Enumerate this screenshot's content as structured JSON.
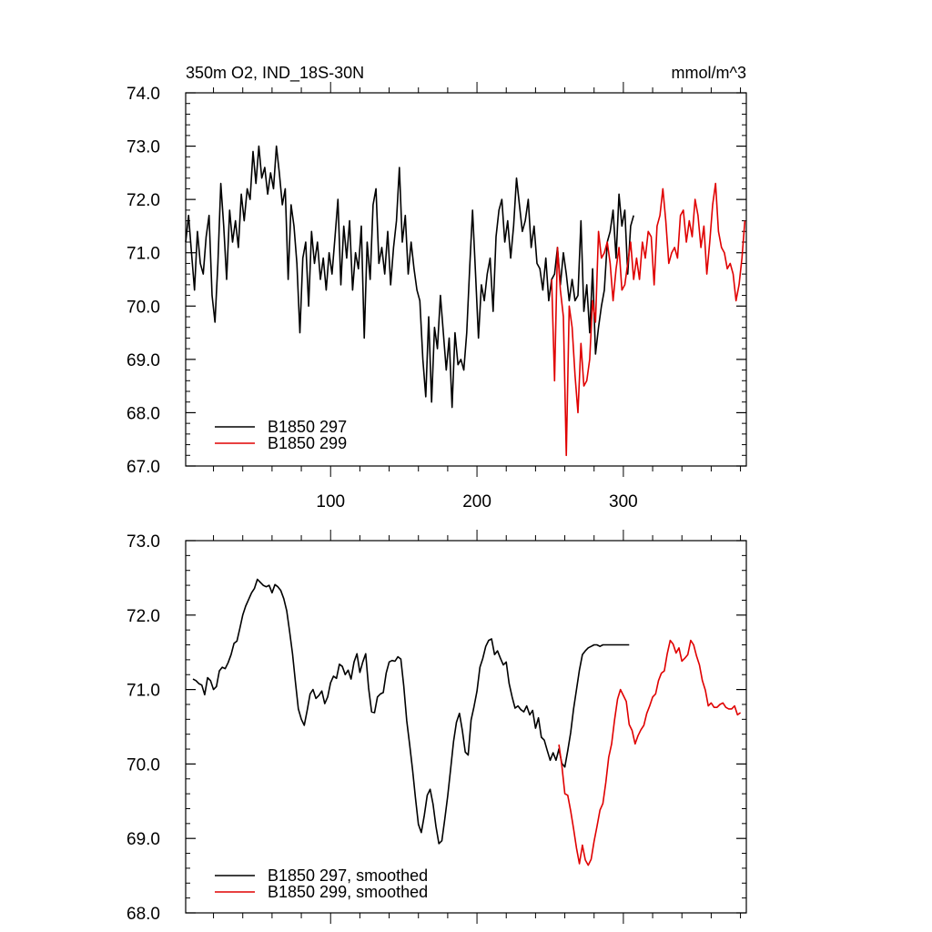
{
  "header": {
    "title": "350m O2, IND_18S-30N",
    "units": "mmol/m^3"
  },
  "colors": {
    "run_297": "#000000",
    "run_299": "#e00000"
  },
  "chart_data": [
    {
      "type": "line",
      "xlim": [
        1,
        384
      ],
      "ylim": [
        67,
        74
      ],
      "x_ticks": [
        100,
        200,
        300
      ],
      "x_tick_labels": [
        "100",
        "200",
        "300"
      ],
      "y_ticks": [
        67,
        68,
        69,
        70,
        71,
        72,
        73,
        74
      ],
      "y_tick_labels": [
        "67.0",
        "68.0",
        "69.0",
        "70.0",
        "71.0",
        "72.0",
        "73.0",
        "74.0"
      ],
      "legend_position": "bottom-left",
      "series": [
        {
          "name": "B1850 297",
          "color": "#000000",
          "x": [
            1,
            3,
            5,
            7,
            9,
            11,
            13,
            15,
            17,
            19,
            21,
            23,
            25,
            27,
            29,
            31,
            33,
            35,
            37,
            39,
            41,
            43,
            45,
            47,
            49,
            51,
            53,
            55,
            57,
            59,
            61,
            63,
            65,
            67,
            69,
            71,
            73,
            75,
            77,
            79,
            81,
            83,
            85,
            87,
            89,
            91,
            93,
            95,
            97,
            99,
            101,
            103,
            105,
            107,
            109,
            111,
            113,
            115,
            117,
            119,
            121,
            123,
            125,
            127,
            129,
            131,
            133,
            135,
            137,
            139,
            141,
            143,
            145,
            147,
            149,
            151,
            153,
            155,
            157,
            159,
            161,
            163,
            165,
            167,
            169,
            171,
            173,
            175,
            177,
            179,
            181,
            183,
            185,
            187,
            189,
            191,
            193,
            195,
            197,
            199,
            201,
            203,
            205,
            207,
            209,
            211,
            213,
            215,
            217,
            219,
            221,
            223,
            225,
            227,
            229,
            231,
            233,
            235,
            237,
            239,
            241,
            243,
            245,
            247,
            249,
            251,
            253,
            255,
            257,
            259,
            261,
            263,
            265,
            267,
            269,
            271,
            273,
            275,
            277,
            279,
            281,
            283,
            285,
            287,
            289,
            291,
            293,
            295,
            297,
            299,
            301,
            303,
            305,
            307
          ],
          "y": [
            71.2,
            71.7,
            71.0,
            70.3,
            71.4,
            70.8,
            70.6,
            71.3,
            71.7,
            70.2,
            69.7,
            70.8,
            72.3,
            71.5,
            70.5,
            71.8,
            71.2,
            71.6,
            71.1,
            72.1,
            71.6,
            72.2,
            72.0,
            72.9,
            72.3,
            73.0,
            72.4,
            72.6,
            72.1,
            72.5,
            72.2,
            73.0,
            72.5,
            71.9,
            72.2,
            70.5,
            71.9,
            71.5,
            70.8,
            69.5,
            70.9,
            71.2,
            70.0,
            71.4,
            70.8,
            71.2,
            70.5,
            70.9,
            70.3,
            71.0,
            70.6,
            71.3,
            72.0,
            70.4,
            71.5,
            70.9,
            71.6,
            70.3,
            71.0,
            70.7,
            71.5,
            69.4,
            71.2,
            70.5,
            71.9,
            72.2,
            70.8,
            71.1,
            70.6,
            71.4,
            70.4,
            71.1,
            71.6,
            72.6,
            71.2,
            71.7,
            70.6,
            71.2,
            70.7,
            70.3,
            70.1,
            69.0,
            68.3,
            69.8,
            68.2,
            69.6,
            69.2,
            70.2,
            69.5,
            68.8,
            69.4,
            68.1,
            69.5,
            68.9,
            69.0,
            68.8,
            69.5,
            70.7,
            71.8,
            70.6,
            69.4,
            70.4,
            70.1,
            70.6,
            70.9,
            69.9,
            71.3,
            71.8,
            72.0,
            71.2,
            71.6,
            70.9,
            71.5,
            72.4,
            71.9,
            71.4,
            71.6,
            72.0,
            71.1,
            71.5,
            70.8,
            70.7,
            70.3,
            70.9,
            70.1,
            70.5,
            70.6,
            71.1,
            70.4,
            71.0,
            70.6,
            70.1,
            70.5,
            70.1,
            70.2,
            71.6,
            69.9,
            70.4,
            69.5,
            70.7,
            69.1,
            69.6,
            70.0,
            70.3,
            71.2,
            71.4,
            71.8,
            70.9,
            72.1,
            71.5,
            71.8,
            70.6,
            71.5,
            71.7
          ],
          "style": "line"
        },
        {
          "name": "B1850 299",
          "color": "#e00000",
          "x": [
            251,
            253,
            255,
            257,
            259,
            261,
            263,
            265,
            267,
            269,
            271,
            273,
            275,
            277,
            279,
            281,
            283,
            285,
            287,
            289,
            291,
            293,
            295,
            297,
            299,
            301,
            303,
            305,
            307,
            309,
            311,
            313,
            315,
            317,
            319,
            321,
            323,
            325,
            327,
            329,
            331,
            333,
            335,
            337,
            339,
            341,
            343,
            345,
            347,
            349,
            351,
            353,
            355,
            357,
            359,
            361,
            363,
            365,
            367,
            369,
            371,
            373,
            375,
            377,
            379,
            381,
            383
          ],
          "y": [
            70.5,
            68.6,
            71.1,
            70.3,
            69.8,
            67.2,
            70.0,
            69.6,
            68.7,
            68.0,
            69.3,
            68.5,
            68.6,
            69.0,
            70.1,
            69.7,
            71.4,
            70.9,
            71.0,
            71.2,
            70.8,
            70.1,
            70.7,
            71.1,
            70.3,
            70.4,
            70.8,
            71.2,
            70.5,
            70.9,
            70.5,
            71.2,
            70.9,
            71.4,
            71.3,
            70.4,
            71.5,
            71.7,
            72.2,
            71.6,
            70.8,
            71.0,
            71.1,
            70.9,
            71.7,
            71.8,
            71.2,
            71.6,
            71.3,
            72.0,
            71.7,
            71.1,
            71.5,
            70.6,
            71.2,
            71.9,
            72.3,
            71.4,
            71.1,
            71.0,
            70.7,
            70.8,
            70.6,
            70.1,
            70.4,
            70.9,
            71.6
          ],
          "style": "line"
        }
      ]
    },
    {
      "type": "line",
      "xlim": [
        1,
        384
      ],
      "ylim": [
        68,
        73
      ],
      "y_ticks": [
        68,
        69,
        70,
        71,
        72,
        73
      ],
      "y_tick_labels": [
        "68.0",
        "69.0",
        "70.0",
        "71.0",
        "72.0",
        "73.0"
      ],
      "legend_position": "bottom-left",
      "series": [
        {
          "name": "B1850 297, smoothed",
          "color": "#000000",
          "x": [
            6,
            8,
            10,
            12,
            14,
            16,
            18,
            20,
            22,
            24,
            26,
            28,
            30,
            32,
            34,
            36,
            38,
            40,
            42,
            44,
            46,
            48,
            50,
            52,
            54,
            56,
            58,
            60,
            62,
            64,
            66,
            68,
            70,
            72,
            74,
            76,
            78,
            80,
            82,
            84,
            86,
            88,
            90,
            92,
            94,
            96,
            98,
            100,
            102,
            104,
            106,
            108,
            110,
            112,
            114,
            116,
            118,
            120,
            122,
            124,
            126,
            128,
            130,
            132,
            134,
            136,
            138,
            140,
            142,
            144,
            146,
            148,
            150,
            152,
            154,
            156,
            158,
            160,
            162,
            164,
            166,
            168,
            170,
            172,
            174,
            176,
            178,
            180,
            182,
            184,
            186,
            188,
            190,
            192,
            194,
            196,
            198,
            200,
            202,
            204,
            206,
            208,
            210,
            212,
            214,
            216,
            218,
            220,
            222,
            224,
            226,
            228,
            230,
            232,
            234,
            236,
            238,
            240,
            242,
            244,
            246,
            248,
            250,
            252,
            254,
            256,
            258,
            260,
            262,
            264,
            266,
            268,
            270,
            272,
            274,
            276,
            278,
            280,
            282,
            284,
            286,
            288,
            290,
            292,
            294,
            296,
            298,
            300,
            302,
            304
          ],
          "y": [
            71.14,
            71.12,
            71.08,
            71.06,
            70.93,
            71.16,
            71.12,
            71.0,
            71.04,
            71.25,
            71.3,
            71.28,
            71.36,
            71.47,
            71.62,
            71.65,
            71.82,
            72.0,
            72.12,
            72.21,
            72.3,
            72.36,
            72.48,
            72.44,
            72.4,
            72.38,
            72.4,
            72.3,
            72.41,
            72.38,
            72.33,
            72.22,
            72.06,
            71.78,
            71.48,
            71.1,
            70.74,
            70.6,
            70.52,
            70.72,
            70.94,
            71.0,
            70.88,
            70.92,
            70.98,
            70.81,
            70.9,
            71.09,
            71.18,
            71.15,
            71.34,
            71.31,
            71.2,
            71.26,
            71.14,
            71.37,
            71.48,
            71.23,
            71.37,
            71.48,
            71.02,
            70.7,
            70.69,
            70.9,
            70.94,
            70.96,
            71.22,
            71.37,
            71.39,
            71.38,
            71.44,
            71.41,
            71.05,
            70.58,
            70.26,
            69.92,
            69.54,
            69.19,
            69.08,
            69.31,
            69.58,
            69.66,
            69.46,
            69.16,
            68.93,
            68.97,
            69.26,
            69.57,
            69.93,
            70.3,
            70.56,
            70.68,
            70.45,
            70.16,
            70.12,
            70.59,
            70.77,
            70.98,
            71.3,
            71.42,
            71.58,
            71.66,
            71.68,
            71.47,
            71.52,
            71.42,
            71.33,
            71.37,
            71.08,
            70.9,
            70.75,
            70.78,
            70.73,
            70.7,
            70.78,
            70.66,
            70.72,
            70.48,
            70.62,
            70.36,
            70.32,
            70.18,
            70.05,
            70.15,
            70.05,
            70.2,
            70.01,
            69.96,
            70.18,
            70.42,
            70.74,
            71.0,
            71.26,
            71.47,
            71.52,
            71.56,
            71.58,
            71.6,
            71.6,
            71.58,
            71.6,
            71.6,
            71.6,
            71.6,
            71.6,
            71.6,
            71.6,
            71.6,
            71.6,
            71.6
          ],
          "style": "line"
        },
        {
          "name": "B1850 299, smoothed",
          "color": "#e00000",
          "x": [
            256,
            258,
            260,
            262,
            264,
            266,
            268,
            270,
            272,
            274,
            276,
            278,
            280,
            282,
            284,
            286,
            288,
            290,
            292,
            294,
            296,
            298,
            300,
            302,
            304,
            306,
            308,
            310,
            312,
            314,
            316,
            318,
            320,
            322,
            324,
            326,
            328,
            330,
            332,
            334,
            336,
            338,
            340,
            342,
            344,
            346,
            348,
            350,
            352,
            354,
            356,
            358,
            360,
            362,
            364,
            366,
            368,
            370,
            372,
            374,
            376,
            378,
            380
          ],
          "y": [
            70.26,
            69.98,
            69.6,
            69.58,
            69.37,
            69.13,
            68.87,
            68.66,
            68.91,
            68.71,
            68.64,
            68.72,
            68.96,
            69.16,
            69.38,
            69.47,
            69.75,
            70.09,
            70.27,
            70.59,
            70.87,
            71.0,
            70.92,
            70.84,
            70.53,
            70.45,
            70.27,
            70.38,
            70.46,
            70.52,
            70.68,
            70.78,
            70.9,
            70.94,
            71.12,
            71.22,
            71.25,
            71.48,
            71.66,
            71.61,
            71.49,
            71.56,
            71.38,
            71.42,
            71.47,
            71.66,
            71.6,
            71.45,
            71.33,
            71.12,
            70.99,
            70.78,
            70.82,
            70.76,
            70.76,
            70.8,
            70.82,
            70.76,
            70.74,
            70.74,
            70.78,
            70.66,
            70.69
          ],
          "style": "line"
        }
      ]
    }
  ]
}
